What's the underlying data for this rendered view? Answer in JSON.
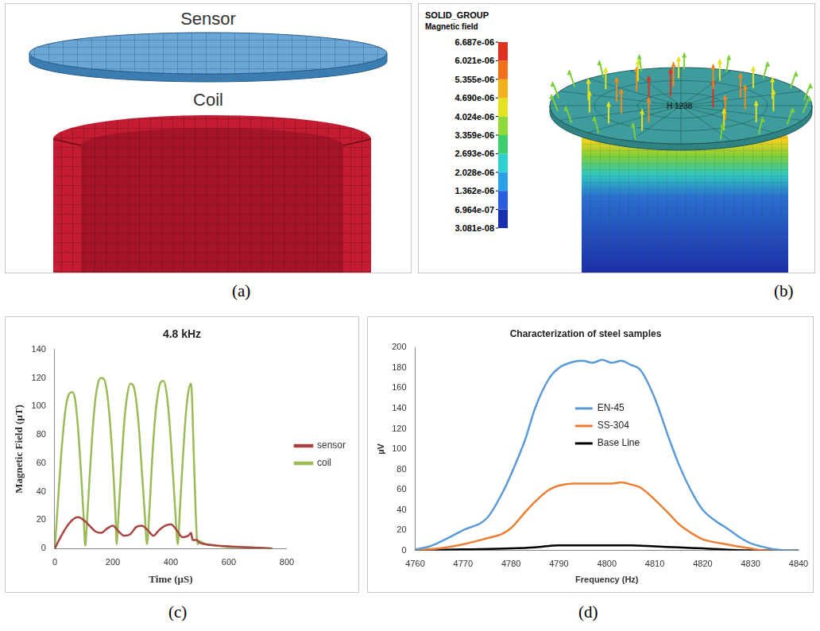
{
  "panels": [
    {
      "label": "(a)",
      "texts": [
        "Sensor",
        "Coil"
      ]
    },
    {
      "label": "(b)",
      "title": "SOLID_GROUP",
      "colorbar_title": "Magnetic field",
      "node_label": "H 1238",
      "colorbar": {
        "range": [
          3.081e-08,
          6.687e-06
        ],
        "ticks": [
          {
            "value": 6.687e-06,
            "label": "6.687e-06"
          },
          {
            "value": 6.021e-06,
            "label": "6.021e-06"
          },
          {
            "value": 5.355e-06,
            "label": "5.355e-06"
          },
          {
            "value": 4.69e-06,
            "label": "4.690e-06"
          },
          {
            "value": 4.024e-06,
            "label": "4.024e-06"
          },
          {
            "value": 3.359e-06,
            "label": "3.359e-06"
          },
          {
            "value": 2.693e-06,
            "label": "2.693e-06"
          },
          {
            "value": 2.028e-06,
            "label": "2.028e-06"
          },
          {
            "value": 1.362e-06,
            "label": "1.362e-06"
          },
          {
            "value": 6.964e-07,
            "label": "6.964e-07"
          },
          {
            "value": 3.081e-08,
            "label": "3.081e-08"
          }
        ]
      }
    }
  ],
  "chart_data": [
    {
      "type": "line",
      "label": "(c)",
      "title": "4.8 kHz",
      "x_label": "Time (µS)",
      "y_label": "Magnetic Field (µT)",
      "xlim": [
        0,
        800
      ],
      "xticks": [
        0,
        200,
        400,
        600,
        800
      ],
      "ylim": [
        0,
        140
      ],
      "yticks": [
        0,
        20,
        40,
        60,
        80,
        100,
        120,
        140
      ],
      "grid": false,
      "legend": "right",
      "series": [
        {
          "name": "sensor",
          "color": "#a8443f",
          "x": [
            0,
            20,
            40,
            60,
            80,
            100,
            120,
            140,
            160,
            180,
            200,
            220,
            240,
            260,
            280,
            300,
            320,
            340,
            360,
            380,
            400,
            420,
            440,
            460,
            470,
            475,
            490,
            500,
            520,
            560,
            600,
            650,
            700,
            750
          ],
          "values": [
            0,
            8,
            15,
            20,
            22,
            20,
            16,
            12,
            11,
            14,
            16,
            12,
            9,
            10,
            15,
            16,
            13,
            9,
            13,
            16,
            17,
            13,
            8,
            9,
            11,
            6,
            6,
            4,
            3,
            2,
            1.5,
            1,
            0.5,
            0
          ]
        },
        {
          "name": "coil",
          "color": "#9bbb59",
          "x": [
            0,
            10,
            20,
            30,
            40,
            50,
            60,
            70,
            80,
            90,
            100,
            105,
            110,
            120,
            130,
            140,
            150,
            160,
            170,
            180,
            190,
            200,
            210,
            213,
            220,
            230,
            240,
            250,
            260,
            270,
            280,
            290,
            300,
            310,
            318,
            325,
            335,
            345,
            355,
            365,
            375,
            385,
            395,
            405,
            415,
            424,
            432,
            442,
            452,
            462,
            470,
            475,
            480,
            486,
            492,
            500,
            520,
            560,
            600,
            650,
            700,
            750
          ],
          "values": [
            0,
            30,
            60,
            85,
            102,
            109,
            110,
            105,
            85,
            55,
            20,
            2,
            15,
            50,
            82,
            105,
            117,
            120,
            119,
            110,
            90,
            60,
            20,
            3,
            25,
            60,
            90,
            108,
            116,
            115,
            105,
            85,
            55,
            25,
            3,
            22,
            60,
            90,
            108,
            117,
            118,
            110,
            90,
            60,
            28,
            3,
            30,
            65,
            95,
            112,
            116,
            95,
            60,
            25,
            3,
            5,
            3,
            2,
            1,
            1,
            0.5,
            0
          ]
        }
      ]
    },
    {
      "type": "line",
      "label": "(d)",
      "title": "Characterization of steel samples",
      "x_label": "Frequency (Hz)",
      "y_label": "µV",
      "xlim": [
        4760,
        4840
      ],
      "xticks": [
        4760,
        4770,
        4780,
        4790,
        4800,
        4810,
        4820,
        4830,
        4840
      ],
      "ylim": [
        0,
        200
      ],
      "yticks": [
        0,
        20,
        40,
        60,
        80,
        100,
        120,
        140,
        160,
        180,
        200
      ],
      "grid": false,
      "legend": "center",
      "series": [
        {
          "name": "EN-45",
          "color": "#5b9bd5",
          "x": [
            4760,
            4763,
            4765,
            4770,
            4775,
            4778,
            4780,
            4783,
            4785,
            4788,
            4790,
            4793,
            4795,
            4797,
            4799,
            4801,
            4803,
            4805,
            4807,
            4810,
            4813,
            4815,
            4818,
            4820,
            4823,
            4825,
            4828,
            4830,
            4833,
            4835,
            4838,
            4840
          ],
          "values": [
            1,
            4,
            8,
            20,
            32,
            55,
            75,
            110,
            140,
            170,
            180,
            186,
            187,
            185,
            188,
            185,
            187,
            183,
            178,
            150,
            110,
            85,
            55,
            40,
            28,
            22,
            12,
            7,
            3,
            1,
            0,
            0
          ]
        },
        {
          "name": "SS-304",
          "color": "#ed7d31",
          "x": [
            4760,
            4765,
            4770,
            4775,
            4778,
            4780,
            4783,
            4785,
            4788,
            4790,
            4793,
            4795,
            4797,
            4799,
            4801,
            4803,
            4805,
            4807,
            4810,
            4813,
            4815,
            4818,
            4820,
            4825,
            4830,
            4833,
            4840
          ],
          "values": [
            0,
            2,
            6,
            12,
            16,
            22,
            38,
            48,
            60,
            64,
            66,
            66,
            66,
            66,
            66,
            67,
            65,
            62,
            50,
            36,
            26,
            16,
            11,
            6,
            2,
            0,
            0
          ]
        },
        {
          "name": "Base Line",
          "color": "#000000",
          "x": [
            4760,
            4770,
            4780,
            4785,
            4790,
            4795,
            4800,
            4805,
            4810,
            4815,
            4820,
            4830,
            4840
          ],
          "values": [
            0,
            1,
            2,
            3,
            5,
            5,
            5,
            5,
            4,
            3,
            2,
            0,
            0
          ]
        }
      ]
    }
  ]
}
